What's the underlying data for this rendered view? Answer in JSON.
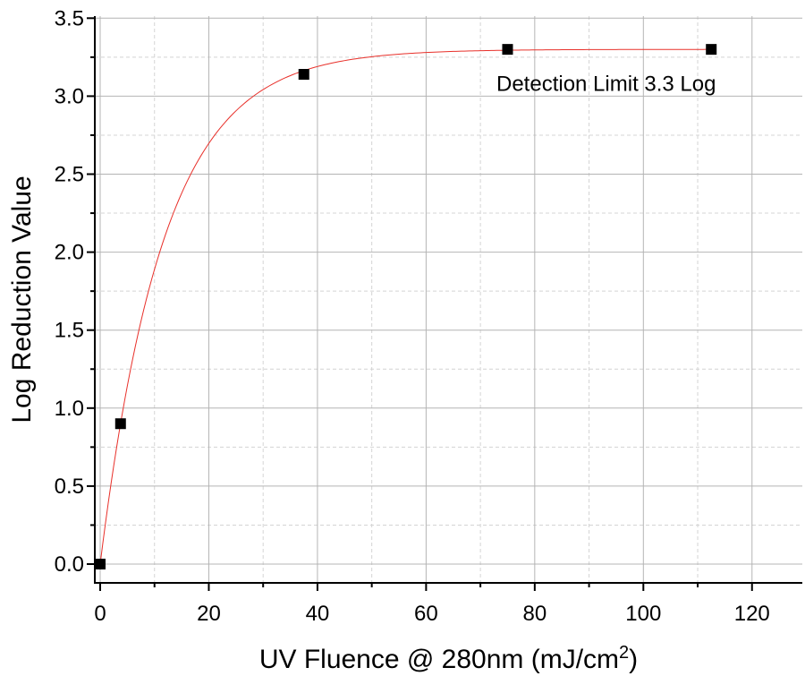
{
  "chart_data": {
    "type": "scatter",
    "title": "",
    "xlabel": "UV Fluence @ 280nm (mJ/cm",
    "xlabel_superscript": "2",
    "xlabel_suffix": ")",
    "ylabel": "Log Reduction Value",
    "xlim": [
      -1,
      130
    ],
    "ylim": [
      -0.12,
      3.5
    ],
    "x_ticks": [
      0,
      20,
      40,
      60,
      80,
      100,
      120
    ],
    "y_ticks": [
      0.0,
      0.5,
      1.0,
      1.5,
      2.0,
      2.5,
      3.0,
      3.5
    ],
    "x_tick_labels": [
      "0",
      "20",
      "40",
      "60",
      "80",
      "100",
      "120"
    ],
    "y_tick_labels": [
      "0.0",
      "0.5",
      "1.0",
      "1.5",
      "2.0",
      "2.5",
      "3.0",
      "3.5"
    ],
    "grid": true,
    "series": [
      {
        "type": "scatter",
        "marker": "square",
        "color": "#000000",
        "x": [
          0,
          3.75,
          37.5,
          75,
          112.5
        ],
        "y": [
          0.0,
          0.9,
          3.14,
          3.3,
          3.3
        ]
      },
      {
        "type": "line",
        "color": "#e8302a",
        "fit": "exponential",
        "asymptote": 3.3,
        "rate": 0.085,
        "x_range": [
          0,
          112.5
        ]
      }
    ],
    "annotations": [
      {
        "text": "Detection Limit 3.3 Log",
        "x": 91,
        "y": 3.08
      }
    ]
  }
}
